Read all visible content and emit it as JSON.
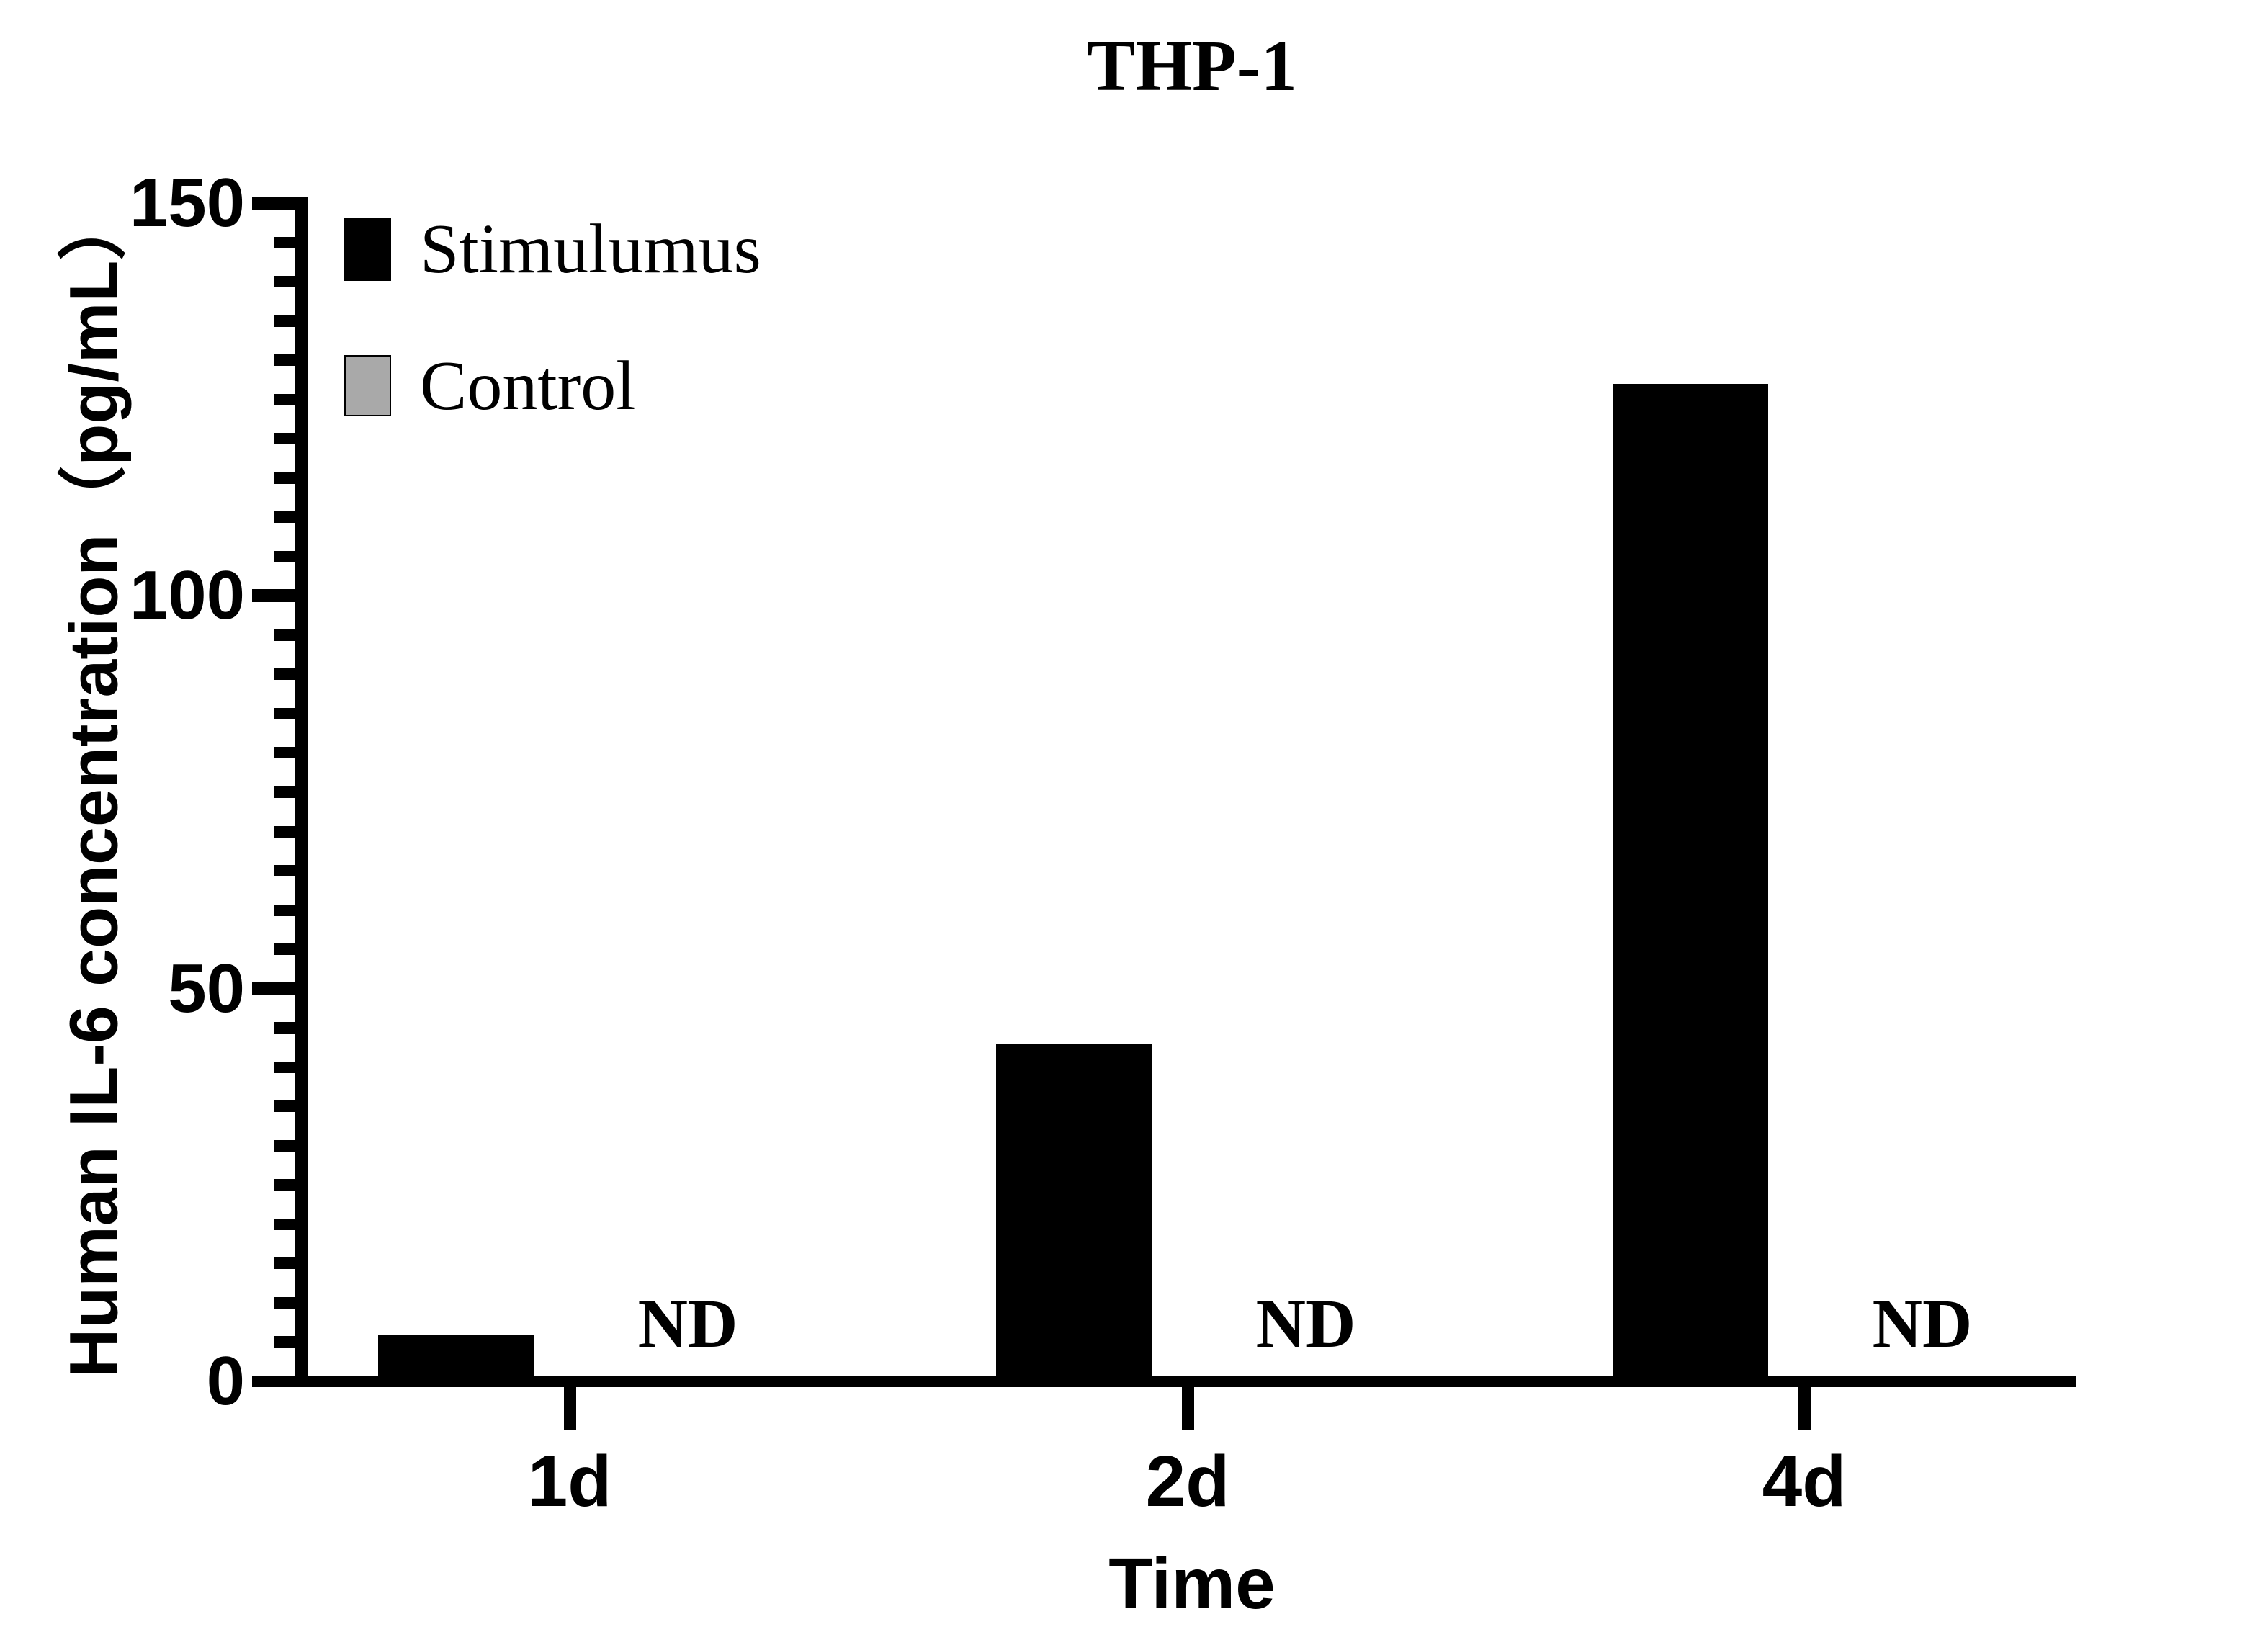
{
  "chart_data": {
    "type": "bar",
    "title": "THP-1",
    "xlabel": "Time",
    "ylabel": "Human IL-6 concentration（pg/mL）",
    "categories": [
      "1d",
      "2d",
      "4d"
    ],
    "series": [
      {
        "name": "Stimulumus",
        "color": "#000000",
        "values": [
          6,
          43,
          127
        ]
      },
      {
        "name": "Control",
        "color": "#a9a9a9",
        "values": [
          "ND",
          "ND",
          "ND"
        ]
      }
    ],
    "not_detected_text": "ND",
    "ylim": [
      0,
      150
    ],
    "yticks": [
      0,
      50,
      100,
      150
    ],
    "minor_tick_step": 5,
    "grid": false,
    "legend_position": "top-left-inside",
    "axis_color": "#000000",
    "background_color": "#ffffff"
  }
}
